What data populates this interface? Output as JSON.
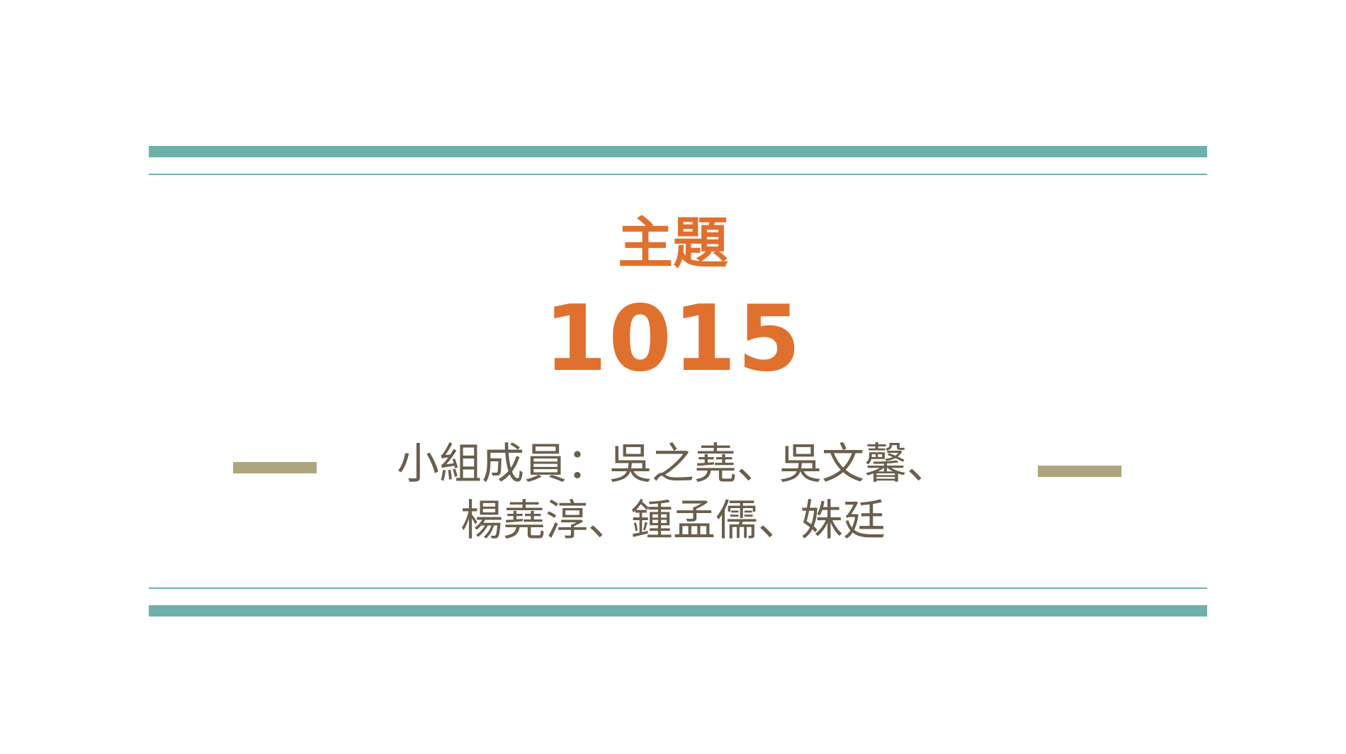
{
  "slide": {
    "title_line1": "主題",
    "title_line2": "1015",
    "members_line1": "小組成員：吳之堯、吳文馨、",
    "members_line2": "楊堯淳、鍾孟儒、姝廷"
  },
  "colors": {
    "accent_rule": "#6fb1aa",
    "title": "#e0702e",
    "dash": "#ada57f",
    "body_text": "#6b5e4c",
    "background": "#ffffff"
  }
}
